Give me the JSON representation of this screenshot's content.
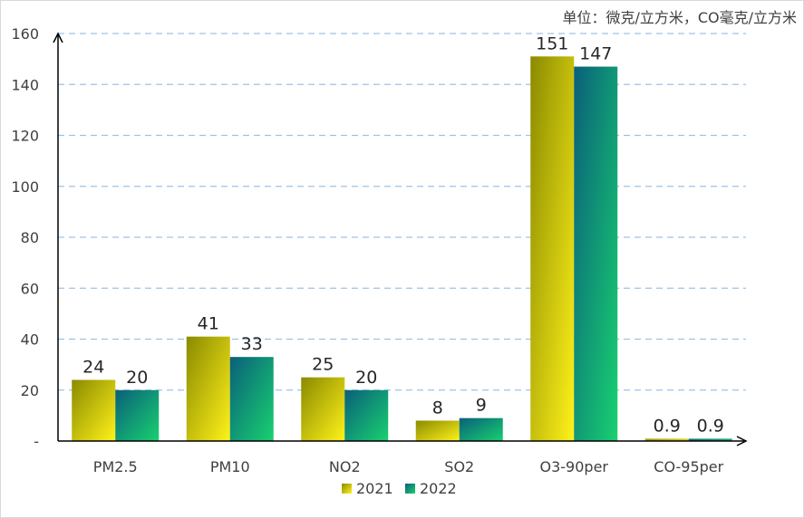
{
  "chart_data": {
    "type": "bar",
    "unit_note": "单位：微克/立方米，CO毫克/立方米",
    "categories": [
      "PM2.5",
      "PM10",
      "NO2",
      "SO2",
      "O3-90per",
      "CO-95per"
    ],
    "series": [
      {
        "name": "2021",
        "values": [
          24,
          41,
          25,
          8,
          151,
          0.9
        ],
        "labels": [
          "24",
          "41",
          "25",
          "8",
          "151",
          "0.9"
        ],
        "gradient": [
          "#8a8a00",
          "#fff21a"
        ]
      },
      {
        "name": "2022",
        "values": [
          20,
          33,
          20,
          9,
          147,
          0.9
        ],
        "labels": [
          "20",
          "33",
          "20",
          "9",
          "147",
          "0.9"
        ],
        "gradient": [
          "#0a5f7a",
          "#18d170"
        ]
      }
    ],
    "y_ticks": [
      "-",
      "20",
      "40",
      "60",
      "80",
      "100",
      "120",
      "140",
      "160"
    ],
    "ylim": [
      0,
      160
    ],
    "grid": true,
    "grid_color": "#9dc3e6",
    "legend_position": "bottom"
  }
}
